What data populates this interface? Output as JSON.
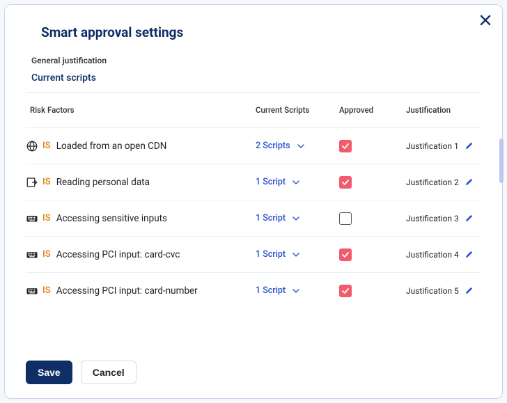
{
  "modal": {
    "title": "Smart approval settings",
    "subtitle": "General justification",
    "section": "Current scripts",
    "columns": {
      "risk": "Risk Factors",
      "scripts": "Current Scripts",
      "approved": "Approved",
      "justification": "Justification"
    },
    "tag": "IS",
    "rows": [
      {
        "icon": "globe",
        "text": "Loaded from an open CDN",
        "scripts": "2 Scripts",
        "approved": true,
        "justification": "Justification 1"
      },
      {
        "icon": "exit",
        "text": "Reading personal data",
        "scripts": "1 Script",
        "approved": true,
        "justification": "Justification 2"
      },
      {
        "icon": "keyboard",
        "text": "Accessing sensitive inputs",
        "scripts": "1 Script",
        "approved": false,
        "justification": "Justification 3"
      },
      {
        "icon": "keyboard",
        "text": "Accessing PCI input: card-cvc",
        "scripts": "1 Script",
        "approved": true,
        "justification": "Justification 4"
      },
      {
        "icon": "keyboard",
        "text": "Accessing PCI input: card-number",
        "scripts": "1 Script",
        "approved": true,
        "justification": "Justification 5"
      }
    ],
    "buttons": {
      "save": "Save",
      "cancel": "Cancel"
    }
  },
  "colors": {
    "title": "#0f2e66",
    "border": "#c7d6f4",
    "link": "#2952cc",
    "tag": "#e08a1c",
    "check_bg": "#f15b6c",
    "divider": "#eceff3",
    "scroll_thumb": "#b9c9ef",
    "primary_btn": "#0f2e66",
    "close_icon": "#0f2e66",
    "edit_icon": "#2952cc"
  }
}
